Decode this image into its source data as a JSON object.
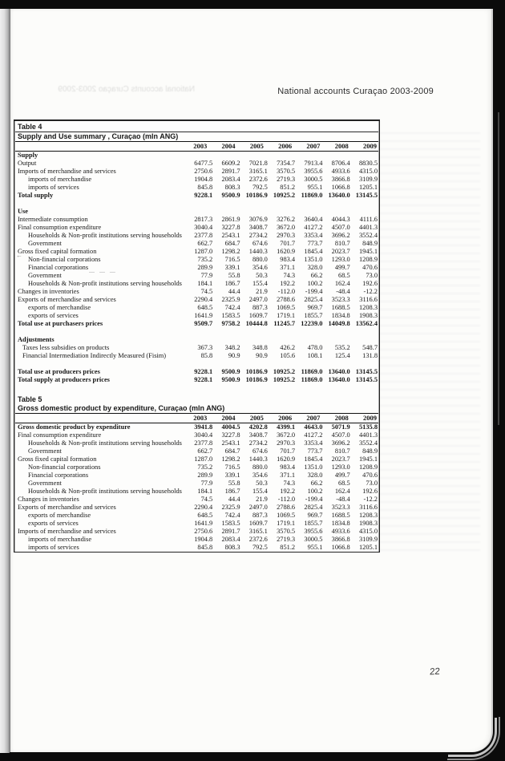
{
  "scan": {
    "header": "National accounts Curaçao 2003-2009",
    "bleed_header": "National accounts Curaçao 2003-2009",
    "page_number": "22",
    "pen_arrow": "←",
    "pen_dashes": "—        —        —"
  },
  "years": [
    "2003",
    "2004",
    "2005",
    "2006",
    "2007",
    "2008",
    "2009"
  ],
  "tables": [
    {
      "name": "Table 4",
      "title": "Supply and Use summary , Curaçao (mln ANG)",
      "rows": [
        {
          "t": "s",
          "label": "Supply"
        },
        {
          "t": "d",
          "i": 0,
          "label": "Output",
          "v": [
            "6477.5",
            "6609.2",
            "7021.8",
            "7354.7",
            "7913.4",
            "8706.4",
            "8830.5"
          ]
        },
        {
          "t": "d",
          "i": 0,
          "label": "Imports of merchandise and services",
          "v": [
            "2750.6",
            "2891.7",
            "3165.1",
            "3570.5",
            "3955.6",
            "4933.6",
            "4315.0"
          ]
        },
        {
          "t": "d",
          "i": 2,
          "label": "imports of merchandise",
          "v": [
            "1904.8",
            "2083.4",
            "2372.6",
            "2719.3",
            "3000.5",
            "3866.8",
            "3109.9"
          ]
        },
        {
          "t": "d",
          "i": 2,
          "label": "imports of services",
          "v": [
            "845.8",
            "808.3",
            "792.5",
            "851.2",
            "955.1",
            "1066.8",
            "1205.1"
          ]
        },
        {
          "t": "d",
          "b": 1,
          "i": 0,
          "label": "Total supply",
          "v": [
            "9228.1",
            "9500.9",
            "10186.9",
            "10925.2",
            "11869.0",
            "13640.0",
            "13145.5"
          ]
        },
        {
          "t": "sp"
        },
        {
          "t": "s",
          "label": "Use"
        },
        {
          "t": "d",
          "i": 0,
          "label": "Intermediate consumption",
          "v": [
            "2817.3",
            "2861.9",
            "3076.9",
            "3276.2",
            "3640.4",
            "4044.3",
            "4111.6"
          ]
        },
        {
          "t": "d",
          "i": 0,
          "label": "Final consumption expenditure",
          "v": [
            "3040.4",
            "3227.8",
            "3408.7",
            "3672.0",
            "4127.2",
            "4507.0",
            "4401.3"
          ]
        },
        {
          "t": "d",
          "i": 2,
          "label": "Households & Non-profit institutions serving households",
          "v": [
            "2377.8",
            "2543.1",
            "2734.2",
            "2970.3",
            "3353.4",
            "3696.2",
            "3552.4"
          ]
        },
        {
          "t": "d",
          "i": 2,
          "label": "Government",
          "v": [
            "662.7",
            "684.7",
            "674.6",
            "701.7",
            "773.7",
            "810.7",
            "848.9"
          ]
        },
        {
          "t": "d",
          "i": 0,
          "label": "Gross fixed capital formation",
          "v": [
            "1287.0",
            "1298.2",
            "1440.3",
            "1620.9",
            "1845.4",
            "2023.7",
            "1945.1"
          ]
        },
        {
          "t": "d",
          "i": 2,
          "label": "Non-financial corporations",
          "v": [
            "735.2",
            "716.5",
            "880.0",
            "983.4",
            "1351.0",
            "1293.0",
            "1208.9"
          ]
        },
        {
          "t": "d",
          "i": 2,
          "label": "Financial corporations",
          "v": [
            "289.9",
            "339.1",
            "354.6",
            "371.1",
            "328.0",
            "499.7",
            "470.6"
          ]
        },
        {
          "t": "d",
          "i": 2,
          "label": "Government",
          "v": [
            "77.9",
            "55.8",
            "50.3",
            "74.3",
            "66.2",
            "68.5",
            "73.0"
          ]
        },
        {
          "t": "d",
          "i": 2,
          "label": "Households & Non-profit institutions serving households",
          "v": [
            "184.1",
            "186.7",
            "155.4",
            "192.2",
            "100.2",
            "162.4",
            "192.6"
          ]
        },
        {
          "t": "d",
          "i": 0,
          "label": "Changes in inventories",
          "v": [
            "74.5",
            "44.4",
            "21.9",
            "-112.0",
            "-199.4",
            "-48.4",
            "-12.2"
          ]
        },
        {
          "t": "d",
          "i": 0,
          "label": "Exports of merchandise and services",
          "v": [
            "2290.4",
            "2325.9",
            "2497.0",
            "2788.6",
            "2825.4",
            "3523.3",
            "3116.6"
          ]
        },
        {
          "t": "d",
          "i": 2,
          "label": "exports of merchandise",
          "v": [
            "648.5",
            "742.4",
            "887.3",
            "1069.5",
            "969.7",
            "1688.5",
            "1208.3"
          ]
        },
        {
          "t": "d",
          "i": 2,
          "label": "exports of services",
          "v": [
            "1641.9",
            "1583.5",
            "1609.7",
            "1719.1",
            "1855.7",
            "1834.8",
            "1908.3"
          ]
        },
        {
          "t": "d",
          "b": 1,
          "i": 0,
          "label": "Total use at purchasers prices",
          "v": [
            "9509.7",
            "9758.2",
            "10444.8",
            "11245.7",
            "12239.0",
            "14049.8",
            "13562.4"
          ]
        },
        {
          "t": "sp"
        },
        {
          "t": "s",
          "label": "Adjustments"
        },
        {
          "t": "d",
          "i": 1,
          "label": "Taxes less subsidies on products",
          "v": [
            "367.3",
            "348.2",
            "348.8",
            "426.2",
            "478.0",
            "535.2",
            "548.7"
          ]
        },
        {
          "t": "d",
          "i": 1,
          "label": "Financial Intermediation Indirectly Measured (Fisim)",
          "v": [
            "85.8",
            "90.9",
            "90.9",
            "105.6",
            "108.1",
            "125.4",
            "131.8"
          ]
        },
        {
          "t": "sp"
        },
        {
          "t": "d",
          "b": 1,
          "i": 0,
          "label": "Total use at producers prices",
          "v": [
            "9228.1",
            "9500.9",
            "10186.9",
            "10925.2",
            "11869.0",
            "13640.0",
            "13145.5"
          ]
        },
        {
          "t": "d",
          "b": 1,
          "i": 0,
          "label": "Total supply at producers prices",
          "v": [
            "9228.1",
            "9500.9",
            "10186.9",
            "10925.2",
            "11869.0",
            "13640.0",
            "13145.5"
          ]
        }
      ]
    },
    {
      "name": "Table 5",
      "title": "Gross domestic product by expenditure, Curaçao (mln ANG)",
      "rows": [
        {
          "t": "d",
          "b": 1,
          "i": 0,
          "label": "Gross domestic product by expenditure",
          "v": [
            "3941.8",
            "4004.5",
            "4202.8",
            "4399.1",
            "4643.0",
            "5071.9",
            "5135.8"
          ]
        },
        {
          "t": "d",
          "i": 0,
          "label": "Final consumption expenditure",
          "v": [
            "3040.4",
            "3227.8",
            "3408.7",
            "3672.0",
            "4127.2",
            "4507.0",
            "4401.3"
          ]
        },
        {
          "t": "d",
          "i": 2,
          "label": "Households & Non-profit institutions serving households",
          "v": [
            "2377.8",
            "2543.1",
            "2734.2",
            "2970.3",
            "3353.4",
            "3696.2",
            "3552.4"
          ]
        },
        {
          "t": "d",
          "i": 2,
          "label": "Government",
          "v": [
            "662.7",
            "684.7",
            "674.6",
            "701.7",
            "773.7",
            "810.7",
            "848.9"
          ]
        },
        {
          "t": "d",
          "i": 0,
          "label": "Gross fixed capital formation",
          "v": [
            "1287.0",
            "1298.2",
            "1440.3",
            "1620.9",
            "1845.4",
            "2023.7",
            "1945.1"
          ]
        },
        {
          "t": "d",
          "i": 2,
          "label": "Non-financial corporations",
          "v": [
            "735.2",
            "716.5",
            "880.0",
            "983.4",
            "1351.0",
            "1293.0",
            "1208.9"
          ]
        },
        {
          "t": "d",
          "i": 2,
          "label": "Financial corporations",
          "v": [
            "289.9",
            "339.1",
            "354.6",
            "371.1",
            "328.0",
            "499.7",
            "470.6"
          ]
        },
        {
          "t": "d",
          "i": 2,
          "label": "Government",
          "v": [
            "77.9",
            "55.8",
            "50.3",
            "74.3",
            "66.2",
            "68.5",
            "73.0"
          ]
        },
        {
          "t": "d",
          "i": 2,
          "label": "Households & Non-profit institutions serving households",
          "v": [
            "184.1",
            "186.7",
            "155.4",
            "192.2",
            "100.2",
            "162.4",
            "192.6"
          ]
        },
        {
          "t": "d",
          "i": 0,
          "label": "Changes in inventories",
          "v": [
            "74.5",
            "44.4",
            "21.9",
            "-112.0",
            "-199.4",
            "-48.4",
            "-12.2"
          ]
        },
        {
          "t": "d",
          "i": 0,
          "label": "Exports of merchandise and services",
          "v": [
            "2290.4",
            "2325.9",
            "2497.0",
            "2788.6",
            "2825.4",
            "3523.3",
            "3116.6"
          ]
        },
        {
          "t": "d",
          "i": 2,
          "label": "exports of merchandise",
          "v": [
            "648.5",
            "742.4",
            "887.3",
            "1069.5",
            "969.7",
            "1688.5",
            "1208.3"
          ]
        },
        {
          "t": "d",
          "i": 2,
          "label": "exports of services",
          "v": [
            "1641.9",
            "1583.5",
            "1609.7",
            "1719.1",
            "1855.7",
            "1834.8",
            "1908.3"
          ]
        },
        {
          "t": "d",
          "i": 0,
          "label": "Imports of merchandise and services",
          "v": [
            "2750.6",
            "2891.7",
            "3165.1",
            "3570.5",
            "3955.6",
            "4933.6",
            "4315.0"
          ]
        },
        {
          "t": "d",
          "i": 2,
          "label": "imports of merchandise",
          "v": [
            "1904.8",
            "2083.4",
            "2372.6",
            "2719.3",
            "3000.5",
            "3866.8",
            "3109.9"
          ]
        },
        {
          "t": "d",
          "i": 2,
          "label": "imports of services",
          "v": [
            "845.8",
            "808.3",
            "792.5",
            "851.2",
            "955.1",
            "1066.8",
            "1205.1"
          ]
        }
      ]
    }
  ]
}
